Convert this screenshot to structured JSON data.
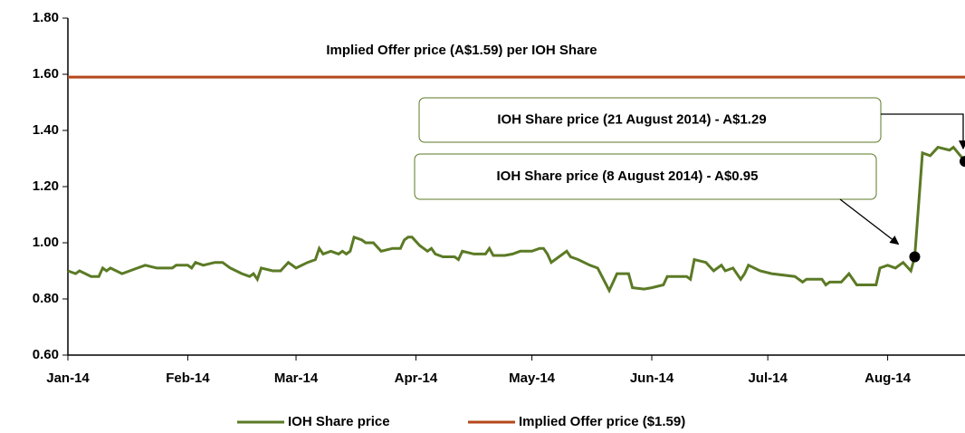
{
  "chart_data": {
    "type": "line",
    "xlim": [
      0,
      232
    ],
    "xticks": [
      {
        "value": 0,
        "label": "Jan-14"
      },
      {
        "value": 31,
        "label": "Feb-14"
      },
      {
        "value": 59,
        "label": "Mar-14"
      },
      {
        "value": 90,
        "label": "Apr-14"
      },
      {
        "value": 120,
        "label": "May-14"
      },
      {
        "value": 151,
        "label": "Jun-14"
      },
      {
        "value": 181,
        "label": "Jul-14"
      },
      {
        "value": 212,
        "label": "Aug-14"
      }
    ],
    "ylim": [
      0.6,
      1.8
    ],
    "yticks": [
      {
        "value": 0.6,
        "label": "0.60"
      },
      {
        "value": 0.8,
        "label": "0.80"
      },
      {
        "value": 1.0,
        "label": "1.00"
      },
      {
        "value": 1.2,
        "label": "1.20"
      },
      {
        "value": 1.4,
        "label": "1.40"
      },
      {
        "value": 1.6,
        "label": "1.60"
      },
      {
        "value": 1.8,
        "label": "1.80"
      }
    ],
    "grid": false,
    "legend": "bottom",
    "series": [
      {
        "name": "IOH Share price",
        "color": "#5b7a25",
        "x": [
          0,
          2,
          3,
          6,
          8,
          9,
          10,
          11,
          14,
          16,
          18,
          20,
          23,
          27,
          28,
          31,
          32,
          33,
          35,
          38,
          40,
          42,
          45,
          47,
          48,
          49,
          50,
          53,
          55,
          57,
          59,
          62,
          64,
          65,
          66,
          68,
          70,
          71,
          72,
          73,
          74,
          76,
          77,
          79,
          81,
          84,
          85,
          86,
          87,
          88,
          89,
          91,
          93,
          94,
          95,
          97,
          100,
          101,
          102,
          105,
          108,
          109,
          110,
          113,
          115,
          117,
          120,
          122,
          123,
          124,
          125,
          127,
          129,
          130,
          132,
          135,
          137,
          140,
          142,
          145,
          146,
          149,
          151,
          154,
          155,
          160,
          161,
          162,
          165,
          167,
          169,
          170,
          172,
          174,
          175,
          176,
          179,
          182,
          188,
          190,
          191,
          195,
          196,
          197,
          200,
          202,
          204,
          209,
          210,
          212,
          214,
          216,
          218,
          219,
          221,
          223,
          225,
          228,
          229,
          232
        ],
        "values": [
          0.9,
          0.89,
          0.9,
          0.88,
          0.88,
          0.91,
          0.9,
          0.91,
          0.89,
          0.9,
          0.91,
          0.92,
          0.91,
          0.91,
          0.92,
          0.92,
          0.91,
          0.93,
          0.92,
          0.93,
          0.93,
          0.91,
          0.89,
          0.88,
          0.89,
          0.87,
          0.91,
          0.9,
          0.9,
          0.93,
          0.91,
          0.93,
          0.94,
          0.98,
          0.96,
          0.97,
          0.96,
          0.97,
          0.96,
          0.97,
          1.02,
          1.01,
          1.0,
          1.0,
          0.97,
          0.98,
          0.98,
          0.98,
          1.01,
          1.02,
          1.02,
          0.99,
          0.97,
          0.98,
          0.96,
          0.95,
          0.95,
          0.94,
          0.97,
          0.96,
          0.96,
          0.98,
          0.955,
          0.955,
          0.96,
          0.97,
          0.97,
          0.98,
          0.98,
          0.96,
          0.93,
          0.95,
          0.97,
          0.95,
          0.94,
          0.92,
          0.91,
          0.83,
          0.89,
          0.89,
          0.84,
          0.835,
          0.84,
          0.85,
          0.88,
          0.88,
          0.87,
          0.94,
          0.93,
          0.9,
          0.92,
          0.9,
          0.91,
          0.87,
          0.89,
          0.92,
          0.9,
          0.89,
          0.88,
          0.86,
          0.87,
          0.87,
          0.85,
          0.86,
          0.86,
          0.89,
          0.85,
          0.85,
          0.91,
          0.92,
          0.91,
          0.93,
          0.9,
          0.95,
          1.32,
          1.31,
          1.34,
          1.33,
          1.34,
          1.29
        ]
      },
      {
        "name": "Implied Offer price ($1.59)",
        "color": "#b5471b",
        "x": [
          0,
          232
        ],
        "values": [
          1.59,
          1.59
        ]
      }
    ],
    "offer_label": "Implied Offer price (A$1.59) per IOH Share",
    "annotations": [
      {
        "text": "IOH Share price (21 August 2014) - A$1.29",
        "x": 232,
        "y": 1.29
      },
      {
        "text": "IOH Share price (8 August 2014) - A$0.95",
        "x": 219,
        "y": 0.95
      }
    ]
  }
}
